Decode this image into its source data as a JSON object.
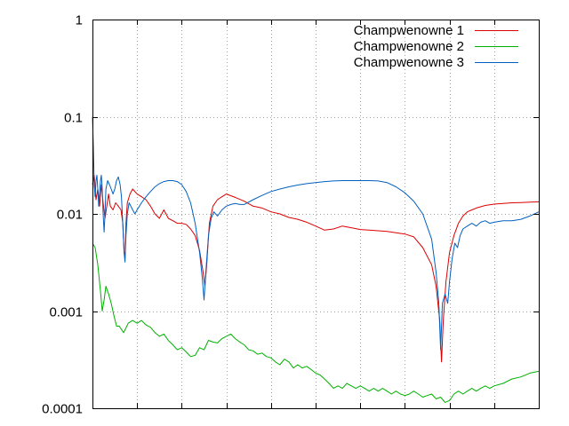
{
  "chart_data": {
    "type": "line",
    "title": "",
    "xlabel": "",
    "ylabel": "",
    "y_scale": "log",
    "ylim": [
      0.0001,
      1
    ],
    "xlim": [
      0,
      1
    ],
    "x_ticks": [
      0.1,
      0.2,
      0.3,
      0.4,
      0.5,
      0.6,
      0.7,
      0.8,
      0.9
    ],
    "y_ticks": [
      {
        "value": 1,
        "label": "1"
      },
      {
        "value": 0.1,
        "label": "0.1"
      },
      {
        "value": 0.01,
        "label": "0.01"
      },
      {
        "value": 0.001,
        "label": "0.001"
      },
      {
        "value": 0.0001,
        "label": "0.0001"
      }
    ],
    "grid": true,
    "legend_position": "top-right",
    "series": [
      {
        "name": "Champwenowne 1",
        "color": "#dd0000",
        "points": [
          [
            0.0,
            0.02
          ],
          [
            0.004,
            0.025
          ],
          [
            0.008,
            0.014
          ],
          [
            0.012,
            0.018
          ],
          [
            0.016,
            0.012
          ],
          [
            0.02,
            0.02
          ],
          [
            0.024,
            0.013
          ],
          [
            0.028,
            0.009
          ],
          [
            0.032,
            0.012
          ],
          [
            0.036,
            0.016
          ],
          [
            0.04,
            0.012
          ],
          [
            0.046,
            0.011
          ],
          [
            0.052,
            0.013
          ],
          [
            0.058,
            0.012
          ],
          [
            0.064,
            0.011
          ],
          [
            0.068,
            0.008
          ],
          [
            0.071,
            0.004
          ],
          [
            0.073,
            0.0035
          ],
          [
            0.075,
            0.008
          ],
          [
            0.078,
            0.013
          ],
          [
            0.084,
            0.016
          ],
          [
            0.09,
            0.018
          ],
          [
            0.1,
            0.016
          ],
          [
            0.11,
            0.015
          ],
          [
            0.12,
            0.014
          ],
          [
            0.13,
            0.012
          ],
          [
            0.14,
            0.01
          ],
          [
            0.15,
            0.009
          ],
          [
            0.16,
            0.011
          ],
          [
            0.17,
            0.009
          ],
          [
            0.18,
            0.0085
          ],
          [
            0.19,
            0.008
          ],
          [
            0.2,
            0.008
          ],
          [
            0.21,
            0.0078
          ],
          [
            0.22,
            0.007
          ],
          [
            0.23,
            0.006
          ],
          [
            0.24,
            0.0042
          ],
          [
            0.248,
            0.0025
          ],
          [
            0.252,
            0.0018
          ],
          [
            0.256,
            0.003
          ],
          [
            0.262,
            0.008
          ],
          [
            0.27,
            0.012
          ],
          [
            0.28,
            0.014
          ],
          [
            0.29,
            0.015
          ],
          [
            0.3,
            0.016
          ],
          [
            0.32,
            0.0148
          ],
          [
            0.34,
            0.0135
          ],
          [
            0.36,
            0.012
          ],
          [
            0.38,
            0.0115
          ],
          [
            0.4,
            0.0105
          ],
          [
            0.42,
            0.01
          ],
          [
            0.44,
            0.0092
          ],
          [
            0.46,
            0.0088
          ],
          [
            0.48,
            0.0082
          ],
          [
            0.5,
            0.0075
          ],
          [
            0.52,
            0.0068
          ],
          [
            0.54,
            0.007
          ],
          [
            0.56,
            0.0075
          ],
          [
            0.58,
            0.0072
          ],
          [
            0.6,
            0.0069
          ],
          [
            0.62,
            0.0068
          ],
          [
            0.64,
            0.0067
          ],
          [
            0.66,
            0.0066
          ],
          [
            0.68,
            0.0064
          ],
          [
            0.7,
            0.0062
          ],
          [
            0.72,
            0.0058
          ],
          [
            0.74,
            0.0045
          ],
          [
            0.76,
            0.003
          ],
          [
            0.77,
            0.0018
          ],
          [
            0.778,
            0.0008
          ],
          [
            0.782,
            0.0003
          ],
          [
            0.786,
            0.0008
          ],
          [
            0.792,
            0.002
          ],
          [
            0.8,
            0.004
          ],
          [
            0.81,
            0.006
          ],
          [
            0.82,
            0.008
          ],
          [
            0.83,
            0.0095
          ],
          [
            0.84,
            0.0105
          ],
          [
            0.85,
            0.011
          ],
          [
            0.86,
            0.0115
          ],
          [
            0.88,
            0.0122
          ],
          [
            0.9,
            0.0126
          ],
          [
            0.92,
            0.0128
          ],
          [
            0.94,
            0.013
          ],
          [
            0.96,
            0.0131
          ],
          [
            0.98,
            0.0132
          ],
          [
            1.0,
            0.0133
          ]
        ]
      },
      {
        "name": "Champwenowne 2",
        "color": "#00b000",
        "points": [
          [
            0.0,
            0.005
          ],
          [
            0.006,
            0.0045
          ],
          [
            0.012,
            0.003
          ],
          [
            0.018,
            0.0016
          ],
          [
            0.022,
            0.001
          ],
          [
            0.026,
            0.0013
          ],
          [
            0.03,
            0.0018
          ],
          [
            0.036,
            0.0015
          ],
          [
            0.042,
            0.0012
          ],
          [
            0.048,
            0.0009
          ],
          [
            0.054,
            0.0007
          ],
          [
            0.06,
            0.0007
          ],
          [
            0.07,
            0.0006
          ],
          [
            0.08,
            0.00075
          ],
          [
            0.09,
            0.0008
          ],
          [
            0.1,
            0.00075
          ],
          [
            0.11,
            0.0008
          ],
          [
            0.12,
            0.00072
          ],
          [
            0.13,
            0.00068
          ],
          [
            0.14,
            0.0006
          ],
          [
            0.15,
            0.00055
          ],
          [
            0.16,
            0.00058
          ],
          [
            0.17,
            0.0005
          ],
          [
            0.18,
            0.00045
          ],
          [
            0.19,
            0.0004
          ],
          [
            0.2,
            0.00042
          ],
          [
            0.21,
            0.00038
          ],
          [
            0.22,
            0.00034
          ],
          [
            0.23,
            0.00035
          ],
          [
            0.24,
            0.00042
          ],
          [
            0.25,
            0.0004
          ],
          [
            0.26,
            0.0005
          ],
          [
            0.27,
            0.00048
          ],
          [
            0.28,
            0.00047
          ],
          [
            0.29,
            0.00052
          ],
          [
            0.3,
            0.00055
          ],
          [
            0.31,
            0.00058
          ],
          [
            0.32,
            0.00052
          ],
          [
            0.33,
            0.00048
          ],
          [
            0.34,
            0.00045
          ],
          [
            0.35,
            0.0004
          ],
          [
            0.36,
            0.00039
          ],
          [
            0.37,
            0.00036
          ],
          [
            0.38,
            0.00037
          ],
          [
            0.39,
            0.00034
          ],
          [
            0.4,
            0.00033
          ],
          [
            0.41,
            0.0003
          ],
          [
            0.42,
            0.00028
          ],
          [
            0.43,
            0.00032
          ],
          [
            0.44,
            0.0003
          ],
          [
            0.45,
            0.00026
          ],
          [
            0.46,
            0.00028
          ],
          [
            0.47,
            0.00026
          ],
          [
            0.48,
            0.00027
          ],
          [
            0.49,
            0.00025
          ],
          [
            0.5,
            0.00023
          ],
          [
            0.51,
            0.00022
          ],
          [
            0.52,
            0.0002
          ],
          [
            0.53,
            0.00018
          ],
          [
            0.54,
            0.00016
          ],
          [
            0.55,
            0.00017
          ],
          [
            0.56,
            0.00016
          ],
          [
            0.57,
            0.00018
          ],
          [
            0.58,
            0.00017
          ],
          [
            0.59,
            0.00016
          ],
          [
            0.6,
            0.00017
          ],
          [
            0.61,
            0.00016
          ],
          [
            0.62,
            0.00015
          ],
          [
            0.63,
            0.00016
          ],
          [
            0.64,
            0.00015
          ],
          [
            0.65,
            0.00016
          ],
          [
            0.66,
            0.00015
          ],
          [
            0.67,
            0.00014
          ],
          [
            0.68,
            0.00015
          ],
          [
            0.69,
            0.00014
          ],
          [
            0.7,
            0.000135
          ],
          [
            0.71,
            0.00014
          ],
          [
            0.72,
            0.00015
          ],
          [
            0.73,
            0.00014
          ],
          [
            0.74,
            0.00013
          ],
          [
            0.75,
            0.000135
          ],
          [
            0.76,
            0.00014
          ],
          [
            0.77,
            0.000125
          ],
          [
            0.78,
            0.00013
          ],
          [
            0.79,
            0.000115
          ],
          [
            0.8,
            0.00012
          ],
          [
            0.81,
            0.00014
          ],
          [
            0.82,
            0.00015
          ],
          [
            0.83,
            0.00014
          ],
          [
            0.84,
            0.00015
          ],
          [
            0.85,
            0.00016
          ],
          [
            0.86,
            0.00015
          ],
          [
            0.87,
            0.00016
          ],
          [
            0.88,
            0.00017
          ],
          [
            0.89,
            0.00016
          ],
          [
            0.9,
            0.00017
          ],
          [
            0.92,
            0.00018
          ],
          [
            0.94,
            0.0002
          ],
          [
            0.96,
            0.00021
          ],
          [
            0.98,
            0.00023
          ],
          [
            1.0,
            0.00024
          ]
        ]
      },
      {
        "name": "Champwenowne 3",
        "color": "#0060c0",
        "points": [
          [
            0.0,
            0.1
          ],
          [
            0.002,
            0.05
          ],
          [
            0.004,
            0.02
          ],
          [
            0.006,
            0.015
          ],
          [
            0.008,
            0.022
          ],
          [
            0.01,
            0.025
          ],
          [
            0.012,
            0.018
          ],
          [
            0.014,
            0.012
          ],
          [
            0.016,
            0.016
          ],
          [
            0.018,
            0.022
          ],
          [
            0.02,
            0.025
          ],
          [
            0.022,
            0.018
          ],
          [
            0.024,
            0.01
          ],
          [
            0.026,
            0.0065
          ],
          [
            0.028,
            0.01
          ],
          [
            0.03,
            0.018
          ],
          [
            0.034,
            0.022
          ],
          [
            0.038,
            0.02
          ],
          [
            0.042,
            0.018
          ],
          [
            0.046,
            0.016
          ],
          [
            0.05,
            0.018
          ],
          [
            0.054,
            0.022
          ],
          [
            0.058,
            0.024
          ],
          [
            0.062,
            0.02
          ],
          [
            0.065,
            0.015
          ],
          [
            0.068,
            0.008
          ],
          [
            0.071,
            0.004
          ],
          [
            0.073,
            0.0032
          ],
          [
            0.075,
            0.006
          ],
          [
            0.078,
            0.01
          ],
          [
            0.082,
            0.013
          ],
          [
            0.086,
            0.012
          ],
          [
            0.09,
            0.011
          ],
          [
            0.095,
            0.01
          ],
          [
            0.1,
            0.011
          ],
          [
            0.11,
            0.013
          ],
          [
            0.12,
            0.015
          ],
          [
            0.13,
            0.017
          ],
          [
            0.14,
            0.019
          ],
          [
            0.15,
            0.0205
          ],
          [
            0.16,
            0.0215
          ],
          [
            0.17,
            0.022
          ],
          [
            0.18,
            0.022
          ],
          [
            0.19,
            0.0215
          ],
          [
            0.2,
            0.02
          ],
          [
            0.21,
            0.017
          ],
          [
            0.22,
            0.013
          ],
          [
            0.23,
            0.008
          ],
          [
            0.24,
            0.004
          ],
          [
            0.246,
            0.0022
          ],
          [
            0.25,
            0.0013
          ],
          [
            0.254,
            0.0025
          ],
          [
            0.26,
            0.006
          ],
          [
            0.266,
            0.009
          ],
          [
            0.272,
            0.0105
          ],
          [
            0.28,
            0.0095
          ],
          [
            0.29,
            0.011
          ],
          [
            0.3,
            0.012
          ],
          [
            0.31,
            0.0125
          ],
          [
            0.32,
            0.0128
          ],
          [
            0.33,
            0.0125
          ],
          [
            0.34,
            0.0125
          ],
          [
            0.36,
            0.014
          ],
          [
            0.38,
            0.0155
          ],
          [
            0.4,
            0.017
          ],
          [
            0.42,
            0.018
          ],
          [
            0.44,
            0.019
          ],
          [
            0.46,
            0.0198
          ],
          [
            0.48,
            0.0205
          ],
          [
            0.5,
            0.021
          ],
          [
            0.52,
            0.0215
          ],
          [
            0.54,
            0.0218
          ],
          [
            0.56,
            0.022
          ],
          [
            0.58,
            0.022
          ],
          [
            0.6,
            0.022
          ],
          [
            0.62,
            0.022
          ],
          [
            0.64,
            0.0218
          ],
          [
            0.66,
            0.021
          ],
          [
            0.68,
            0.019
          ],
          [
            0.7,
            0.0165
          ],
          [
            0.72,
            0.0135
          ],
          [
            0.74,
            0.01
          ],
          [
            0.76,
            0.0055
          ],
          [
            0.77,
            0.0025
          ],
          [
            0.776,
            0.0012
          ],
          [
            0.78,
            0.0004
          ],
          [
            0.784,
            0.0012
          ],
          [
            0.79,
            0.0015
          ],
          [
            0.796,
            0.0012
          ],
          [
            0.8,
            0.002
          ],
          [
            0.806,
            0.0035
          ],
          [
            0.812,
            0.005
          ],
          [
            0.818,
            0.0045
          ],
          [
            0.824,
            0.006
          ],
          [
            0.83,
            0.007
          ],
          [
            0.84,
            0.0075
          ],
          [
            0.85,
            0.008
          ],
          [
            0.86,
            0.0075
          ],
          [
            0.87,
            0.0082
          ],
          [
            0.88,
            0.0085
          ],
          [
            0.89,
            0.008
          ],
          [
            0.9,
            0.0082
          ],
          [
            0.92,
            0.0085
          ],
          [
            0.94,
            0.0085
          ],
          [
            0.96,
            0.0088
          ],
          [
            0.98,
            0.0095
          ],
          [
            1.0,
            0.0105
          ]
        ]
      }
    ]
  }
}
